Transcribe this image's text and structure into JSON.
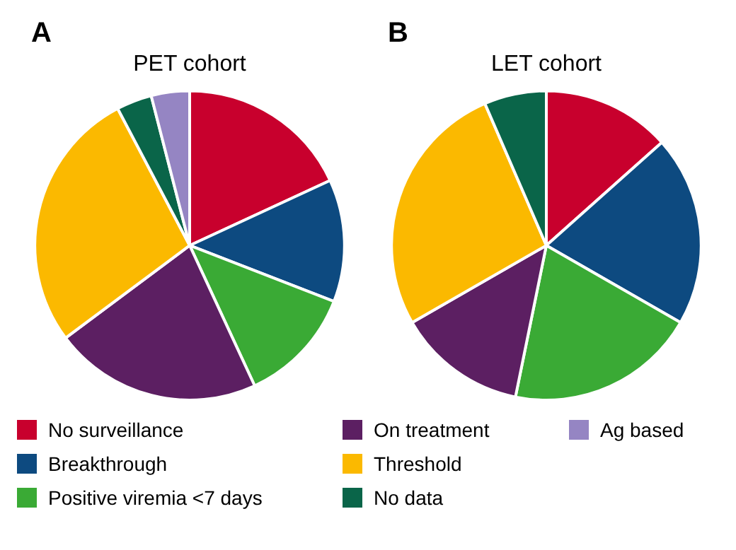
{
  "chart_data": [
    {
      "type": "pie",
      "title": "A",
      "subtitle": "PET cohort",
      "legend": "bottom",
      "categories": [
        "No surveillance",
        "Breakthrough",
        "Positive viremia <7 days",
        "On treatment",
        "Threshold",
        "No data",
        "Ag based"
      ],
      "values": [
        18.1,
        12.8,
        12.2,
        21.7,
        27.5,
        3.7,
        4.0
      ],
      "colors": [
        "#c8002d",
        "#0d4a80",
        "#3aaa35",
        "#5c1f62",
        "#fbb900",
        "#0a6549",
        "#9585c3"
      ]
    },
    {
      "type": "pie",
      "title": "B",
      "subtitle": "LET cohort",
      "categories": [
        null,
        null,
        null,
        null,
        null,
        null
      ],
      "values": [
        13.4,
        19.9,
        19.9,
        13.5,
        26.8,
        6.5
      ],
      "colors": [
        "#c8002d",
        "#0d4a80",
        "#3aaa35",
        "#5c1f62",
        "#fbb900",
        "#0a6549"
      ]
    }
  ]
}
